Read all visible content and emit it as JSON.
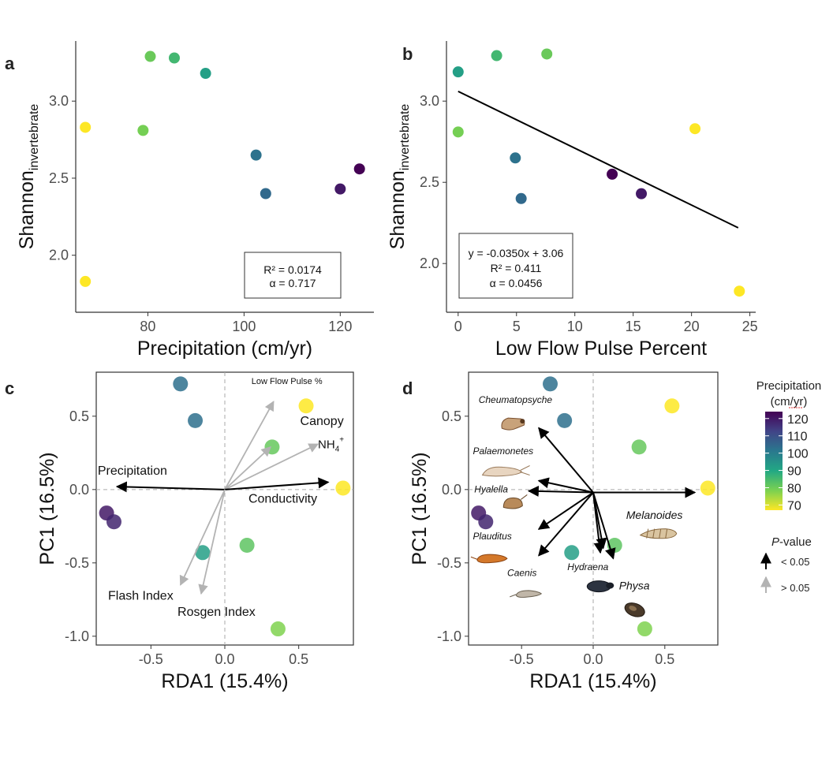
{
  "colors": {
    "viridis": [
      "#fde725",
      "#7ad151",
      "#22a884",
      "#2a788e",
      "#414487",
      "#440154"
    ],
    "sig": "#000000",
    "nonsig": "#b3b3b3",
    "axis": "#333333",
    "tick_text": "#4d4d4d"
  },
  "legend": {
    "title1": "Precipitation",
    "title2": "(cm/yr)",
    "ticks": [
      "120",
      "110",
      "100",
      "90",
      "80",
      "70"
    ],
    "pvalue_title_italic": "P",
    "pvalue_title_rest": "-value",
    "sig_label": "< 0.05",
    "nonsig_label": "> 0.05",
    "min": 67,
    "max": 124
  },
  "chart_data": [
    {
      "type": "scatter",
      "panel": "a",
      "xlabel": "Precipitation (cm/yr)",
      "ylabel_main": "Shannon",
      "ylabel_sub": "invertebrate",
      "xlim": [
        65,
        127
      ],
      "ylim": [
        1.63,
        3.39
      ],
      "xticks": [
        80,
        100,
        120
      ],
      "yticks": [
        2.0,
        2.5,
        3.0
      ],
      "ytick_labels": [
        "2.0",
        "2.5",
        "3.0"
      ],
      "points": [
        {
          "x": 67,
          "y": 2.83
        },
        {
          "x": 67,
          "y": 1.83
        },
        {
          "x": 79,
          "y": 2.81
        },
        {
          "x": 80.5,
          "y": 3.29
        },
        {
          "x": 85.5,
          "y": 3.28
        },
        {
          "x": 92,
          "y": 3.18
        },
        {
          "x": 102.5,
          "y": 2.65
        },
        {
          "x": 104.5,
          "y": 2.4
        },
        {
          "x": 120,
          "y": 2.43
        },
        {
          "x": 124,
          "y": 2.56
        }
      ],
      "stats": [
        "R² = 0.0174",
        "α = 0.717"
      ]
    },
    {
      "type": "scatter",
      "panel": "b",
      "xlabel": "Low Flow Pulse Percent",
      "ylabel_main": "Shannon",
      "ylabel_sub": "invertebrate",
      "xlim": [
        -1,
        25.5
      ],
      "ylim": [
        1.7,
        3.37
      ],
      "xticks": [
        0,
        5,
        10,
        15,
        20,
        25
      ],
      "yticks": [
        2.0,
        2.5,
        3.0
      ],
      "ytick_labels": [
        "2.0",
        "2.5",
        "3.0"
      ],
      "points": [
        {
          "x": 0,
          "y": 3.18,
          "p": 92
        },
        {
          "x": 0,
          "y": 2.81,
          "p": 79
        },
        {
          "x": 3.3,
          "y": 3.28,
          "p": 85.5
        },
        {
          "x": 7.6,
          "y": 3.29,
          "p": 80.5
        },
        {
          "x": 4.9,
          "y": 2.65,
          "p": 102.5
        },
        {
          "x": 5.4,
          "y": 2.4,
          "p": 104.5
        },
        {
          "x": 13.2,
          "y": 2.55,
          "p": 124
        },
        {
          "x": 15.7,
          "y": 2.43,
          "p": 120
        },
        {
          "x": 20.3,
          "y": 2.83,
          "p": 67
        },
        {
          "x": 24.1,
          "y": 1.83,
          "p": 67
        }
      ],
      "fit": {
        "slope": -0.035,
        "intercept": 3.06,
        "x_range": [
          0,
          24
        ]
      },
      "stats": [
        "y = -0.0350x + 3.06",
        "R² = 0.411",
        "α = 0.0456"
      ]
    },
    {
      "type": "scatter",
      "panel": "c",
      "xlabel": "RDA1 (15.4%)",
      "ylabel": "PC1 (16.5%)",
      "xlim": [
        -0.87,
        0.87
      ],
      "ylim": [
        -1.06,
        0.8
      ],
      "xticks": [
        -0.5,
        0.0,
        0.5
      ],
      "xtick_labels": [
        "-0.5",
        "0.0",
        "0.5"
      ],
      "yticks": [
        -1.0,
        -0.5,
        0.0,
        0.5
      ],
      "ytick_labels": [
        "-1.0",
        "-0.5",
        "0.0",
        "0.5"
      ],
      "points": [
        {
          "x": -0.3,
          "y": 0.72,
          "p": 103
        },
        {
          "x": -0.2,
          "y": 0.47,
          "p": 103
        },
        {
          "x": 0.55,
          "y": 0.57,
          "p": 67
        },
        {
          "x": 0.32,
          "y": 0.29,
          "p": 81
        },
        {
          "x": 0.8,
          "y": 0.01,
          "p": 67
        },
        {
          "x": -0.8,
          "y": -0.16,
          "p": 120
        },
        {
          "x": -0.75,
          "y": -0.22,
          "p": 118
        },
        {
          "x": -0.15,
          "y": -0.43,
          "p": 92
        },
        {
          "x": 0.15,
          "y": -0.38,
          "p": 82
        },
        {
          "x": 0.36,
          "y": -0.95,
          "p": 78
        }
      ],
      "arrows": [
        {
          "label": "Low Flow Pulse %",
          "x": 0.33,
          "y": 0.6,
          "sig": false,
          "lx": 0.42,
          "ly": 0.72,
          "size": 11,
          "italic": false,
          "anchor": "middle"
        },
        {
          "label": "Canopy",
          "x": 0.31,
          "y": 0.29,
          "sig": false,
          "lx": 0.51,
          "ly": 0.44,
          "size": 16,
          "italic": false,
          "anchor": "start"
        },
        {
          "label": "NH",
          "sub": "4",
          "sup": "+",
          "x": 0.63,
          "y": 0.31,
          "sig": false,
          "lx": 0.63,
          "ly": 0.28,
          "size": 15,
          "italic": false,
          "anchor": "start"
        },
        {
          "label": "Conductivity",
          "x": 0.7,
          "y": 0.05,
          "sig": true,
          "lx": 0.16,
          "ly": -0.09,
          "size": 16,
          "italic": false,
          "anchor": "start"
        },
        {
          "label": "Precipitation",
          "x": -0.73,
          "y": 0.02,
          "sig": true,
          "lx": -0.86,
          "ly": 0.1,
          "size": 16,
          "italic": false,
          "anchor": "start"
        },
        {
          "label": "Flash Index",
          "x": -0.3,
          "y": -0.65,
          "sig": false,
          "lx": -0.79,
          "ly": -0.75,
          "size": 16,
          "italic": false,
          "anchor": "start"
        },
        {
          "label": "Rosgen Index",
          "x": -0.16,
          "y": -0.71,
          "sig": false,
          "lx": -0.32,
          "ly": -0.86,
          "size": 16,
          "italic": false,
          "anchor": "start"
        }
      ]
    },
    {
      "type": "scatter",
      "panel": "d",
      "xlabel": "RDA1 (15.4%)",
      "ylabel": "PC1 (16.5%)",
      "xlim": [
        -0.87,
        0.87
      ],
      "ylim": [
        -1.06,
        0.8
      ],
      "xticks": [
        -0.5,
        0.0,
        0.5
      ],
      "xtick_labels": [
        "-0.5",
        "0.0",
        "0.5"
      ],
      "yticks": [
        -1.0,
        -0.5,
        0.0,
        0.5
      ],
      "ytick_labels": [
        "-1.0",
        "-0.5",
        "0.0",
        "0.5"
      ],
      "points": [
        {
          "x": -0.3,
          "y": 0.72,
          "p": 103
        },
        {
          "x": -0.2,
          "y": 0.47,
          "p": 103
        },
        {
          "x": 0.55,
          "y": 0.57,
          "p": 67
        },
        {
          "x": 0.32,
          "y": 0.29,
          "p": 81
        },
        {
          "x": 0.8,
          "y": 0.01,
          "p": 67
        },
        {
          "x": -0.8,
          "y": -0.16,
          "p": 120
        },
        {
          "x": -0.75,
          "y": -0.22,
          "p": 118
        },
        {
          "x": -0.15,
          "y": -0.43,
          "p": 92
        },
        {
          "x": 0.15,
          "y": -0.38,
          "p": 82
        },
        {
          "x": 0.36,
          "y": -0.95,
          "p": 78
        }
      ],
      "origin": {
        "x": 0.0,
        "y": -0.02
      },
      "arrows": [
        {
          "label": "Cheumatopsyche",
          "x": -0.38,
          "y": 0.42,
          "sig": true,
          "lx": -0.8,
          "ly": 0.59,
          "size": 12,
          "italic": true,
          "anchor": "start",
          "icon": "caddisfly",
          "ix": -0.56,
          "iy": 0.45
        },
        {
          "label": "Palaemonetes",
          "x": -0.38,
          "y": 0.06,
          "sig": true,
          "lx": -0.84,
          "ly": 0.24,
          "size": 12,
          "italic": true,
          "anchor": "start",
          "icon": "shrimp",
          "ix": -0.63,
          "iy": 0.12
        },
        {
          "label": "Hyalella",
          "x": -0.45,
          "y": -0.01,
          "sig": true,
          "lx": -0.83,
          "ly": -0.02,
          "size": 12,
          "italic": true,
          "anchor": "start",
          "icon": "amphipod",
          "ix": -0.56,
          "iy": -0.1
        },
        {
          "label": "Plauditus",
          "x": -0.38,
          "y": -0.27,
          "sig": true,
          "lx": -0.84,
          "ly": -0.34,
          "size": 12,
          "italic": true,
          "anchor": "start",
          "icon": "mayfly",
          "ix": -0.7,
          "iy": -0.47
        },
        {
          "label": "Caenis",
          "x": -0.38,
          "y": -0.45,
          "sig": true,
          "lx": -0.6,
          "ly": -0.59,
          "size": 12,
          "italic": true,
          "anchor": "start",
          "icon": "caenis",
          "ix": -0.45,
          "iy": -0.71
        },
        {
          "label": "Hydraena",
          "x": 0.05,
          "y": -0.43,
          "sig": true,
          "lx": -0.18,
          "ly": -0.55,
          "size": 12,
          "italic": true,
          "anchor": "start",
          "icon": "beetle",
          "ix": 0.04,
          "iy": -0.66
        },
        {
          "label": "Physa",
          "x": 0.14,
          "y": -0.47,
          "sig": true,
          "lx": 0.18,
          "ly": -0.68,
          "size": 14,
          "italic": true,
          "anchor": "start",
          "icon": "physa",
          "ix": 0.29,
          "iy": -0.82
        },
        {
          "label": "",
          "x": 0.07,
          "y": -0.4,
          "sig": true
        },
        {
          "label": "Melanoides",
          "x": 0.71,
          "y": -0.02,
          "sig": true,
          "lx": 0.23,
          "ly": -0.2,
          "size": 14,
          "italic": true,
          "anchor": "start",
          "icon": "melanoides",
          "ix": 0.45,
          "iy": -0.3
        }
      ]
    }
  ],
  "panel_labels": [
    "a",
    "b",
    "c",
    "d"
  ]
}
